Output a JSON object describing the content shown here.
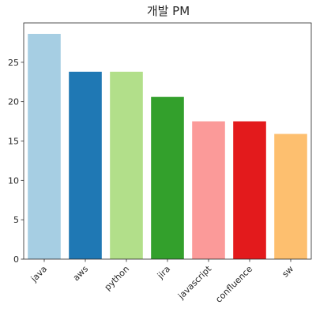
{
  "chart_data": {
    "type": "bar",
    "title": "개발 PM",
    "xlabel": "",
    "ylabel": "",
    "categories": [
      "java",
      "aws",
      "python",
      "jira",
      "javascript",
      "confluence",
      "sw"
    ],
    "values": [
      28.6,
      23.8,
      23.8,
      20.6,
      17.5,
      17.5,
      15.9
    ],
    "colors": [
      "#a6cee3",
      "#1f78b4",
      "#b2df8a",
      "#33a02c",
      "#fb9a99",
      "#e31a1c",
      "#fdbf6f"
    ],
    "ylim": [
      0,
      30
    ],
    "yticks": [
      0,
      5,
      10,
      15,
      20,
      25
    ],
    "grid": false,
    "legend": "none"
  }
}
